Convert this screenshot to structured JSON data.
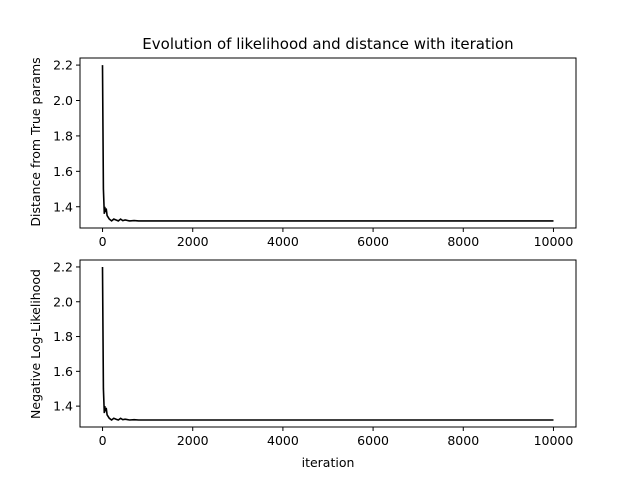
{
  "chart_data": [
    {
      "type": "line",
      "title": "Evolution of likelihood and distance with iteration",
      "xlabel": "",
      "ylabel": "Distance from True params",
      "xlim": [
        -500,
        10500
      ],
      "ylim": [
        1.28,
        2.24
      ],
      "xticks": [
        0,
        2000,
        4000,
        6000,
        8000,
        10000
      ],
      "yticks": [
        1.4,
        1.6,
        1.8,
        2.0,
        2.2
      ],
      "xtick_labels": [
        "0",
        "2000",
        "4000",
        "6000",
        "8000",
        "10000"
      ],
      "ytick_labels": [
        "1.4",
        "1.6",
        "1.8",
        "2.0",
        "2.2"
      ],
      "grid": false,
      "series": [
        {
          "color": "#000000",
          "x": [
            0,
            20,
            40,
            50,
            60,
            80,
            100,
            150,
            200,
            250,
            300,
            350,
            400,
            450,
            500,
            600,
            700,
            800,
            1000,
            2000,
            3000,
            4000,
            5000,
            6000,
            7000,
            8000,
            9000,
            10000
          ],
          "y": [
            2.2,
            1.5,
            1.36,
            1.4,
            1.37,
            1.39,
            1.35,
            1.33,
            1.32,
            1.33,
            1.325,
            1.32,
            1.33,
            1.322,
            1.325,
            1.32,
            1.322,
            1.32,
            1.32,
            1.32,
            1.32,
            1.32,
            1.32,
            1.32,
            1.32,
            1.32,
            1.32,
            1.32
          ]
        }
      ]
    },
    {
      "type": "line",
      "title": "",
      "xlabel": "iteration",
      "ylabel": "Negative Log-Likelihood",
      "xlim": [
        -500,
        10500
      ],
      "ylim": [
        1.28,
        2.24
      ],
      "xticks": [
        0,
        2000,
        4000,
        6000,
        8000,
        10000
      ],
      "yticks": [
        1.4,
        1.6,
        1.8,
        2.0,
        2.2
      ],
      "xtick_labels": [
        "0",
        "2000",
        "4000",
        "6000",
        "8000",
        "10000"
      ],
      "ytick_labels": [
        "1.4",
        "1.6",
        "1.8",
        "2.0",
        "2.2"
      ],
      "grid": false,
      "series": [
        {
          "color": "#000000",
          "x": [
            0,
            20,
            40,
            50,
            60,
            80,
            100,
            150,
            200,
            250,
            300,
            350,
            400,
            450,
            500,
            600,
            700,
            800,
            1000,
            2000,
            3000,
            4000,
            5000,
            6000,
            7000,
            8000,
            9000,
            10000
          ],
          "y": [
            2.2,
            1.5,
            1.36,
            1.4,
            1.37,
            1.39,
            1.35,
            1.33,
            1.32,
            1.33,
            1.325,
            1.32,
            1.33,
            1.322,
            1.325,
            1.32,
            1.322,
            1.32,
            1.32,
            1.32,
            1.32,
            1.32,
            1.32,
            1.32,
            1.32,
            1.32,
            1.32,
            1.32
          ]
        }
      ]
    }
  ]
}
